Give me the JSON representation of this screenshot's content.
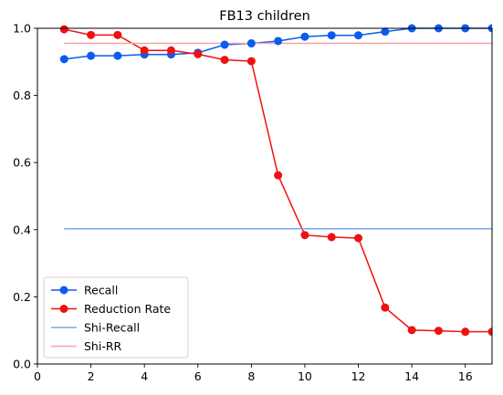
{
  "chart_data": {
    "type": "line",
    "title": "FB13 children",
    "xlabel": "",
    "ylabel": "",
    "xlim": [
      0,
      17
    ],
    "ylim": [
      0,
      1.0
    ],
    "xticks": [
      0,
      2,
      4,
      6,
      8,
      10,
      12,
      14,
      16
    ],
    "yticks": [
      0.0,
      0.2,
      0.4,
      0.6,
      0.8,
      1.0
    ],
    "xtick_labels": [
      "0",
      "2",
      "4",
      "6",
      "8",
      "10",
      "12",
      "14",
      "16"
    ],
    "ytick_labels": [
      "0.0",
      "0.2",
      "0.4",
      "0.6",
      "0.8",
      "1.0"
    ],
    "grid": false,
    "legend_position": "lower-left",
    "x": [
      1,
      2,
      3,
      4,
      5,
      6,
      7,
      8,
      9,
      10,
      11,
      12,
      13,
      14,
      15,
      16,
      17
    ],
    "series": [
      {
        "name": "Recall",
        "kind": "line-marker",
        "color": "#0b5ced",
        "values": [
          0.908,
          0.918,
          0.918,
          0.922,
          0.922,
          0.927,
          0.951,
          0.955,
          0.962,
          0.975,
          0.979,
          0.979,
          0.99,
          1.0,
          1.0,
          1.0,
          1.0
        ]
      },
      {
        "name": "Reduction Rate",
        "kind": "line-marker",
        "color": "#f01010",
        "values": [
          0.997,
          0.98,
          0.98,
          0.934,
          0.934,
          0.923,
          0.906,
          0.902,
          0.562,
          0.384,
          0.378,
          0.375,
          0.168,
          0.101,
          0.099,
          0.096,
          0.096
        ]
      },
      {
        "name": "Shi-Recall",
        "kind": "hline",
        "color": "#78a8f0",
        "x_range": [
          1,
          17
        ],
        "value": 0.403
      },
      {
        "name": "Shi-RR",
        "kind": "hline",
        "color": "#f7a4a4",
        "x_range": [
          1,
          17
        ],
        "value": 0.955
      }
    ]
  }
}
